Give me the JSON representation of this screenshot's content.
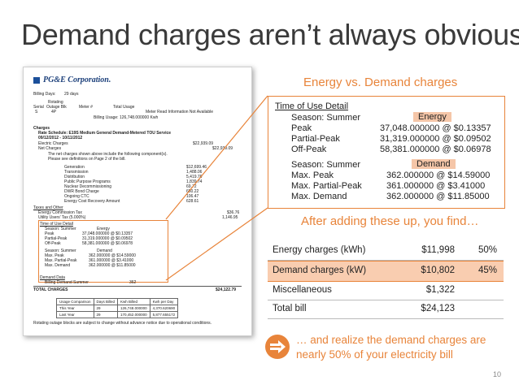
{
  "title": "Demand charges aren’t always obvious",
  "bill": {
    "company": "PG&E Corporation.",
    "billing_days_label": "Billing Days:",
    "billing_days_value": "29 days",
    "rotating_outage_block": "Rotating\nOutage Blk",
    "serial_label": "Serial",
    "meter_label": "Meter #",
    "total_usage_label": "Total Usage",
    "serial_value": "S",
    "block_value": "4P",
    "meter_read_note": "Meter Read Information Not Available",
    "billing_usage": "Billing Usage: 126,748.000000 Kwh",
    "charges_label": "Charges",
    "rate_schedule": "Rate Schedule:  E19S  Medium General Demand-Metered TOU Service",
    "period": "09/12/2012 - 10/11/2012",
    "electric_charges": "Electric Charges",
    "electric_charges_amt": "$22,939.09",
    "net_charges": "Net Charges",
    "net_charges_amt": "$22,939.09",
    "net_note_1": "The net charges shown above include the following component(s).",
    "net_note_2": "Please see definitions on Page 2 of the bill.",
    "components": [
      {
        "name": "Generation",
        "amt": "$12,699.46"
      },
      {
        "name": "Transmission",
        "amt": "1,488.06"
      },
      {
        "name": "Distribution",
        "amt": "5,419.76"
      },
      {
        "name": "Public Purpose Programs",
        "amt": "1,839.74"
      },
      {
        "name": "Nuclear Decommissioning",
        "amt": "69.72"
      },
      {
        "name": "DWR Bond Charge",
        "amt": "650.22"
      },
      {
        "name": "Ongoing CTC",
        "amt": "106.47"
      },
      {
        "name": "Energy Cost Recovery Amount",
        "amt": "628.61"
      }
    ],
    "taxes_label": "Taxes and Other",
    "energy_tax": "Energy Commission Tax",
    "energy_tax_amt": "$36.76",
    "utility_tax": "Utility Users' Tax (5.000%)",
    "utility_tax_amt": "1,146.95",
    "tou_label": "Time of Use Detail",
    "tou_season": "Season: Summer",
    "tou_energy": "Energy",
    "tou_peak": "Peak",
    "tou_peak_val": "37,048.000000 @ $0.13357",
    "tou_partial": "Partial-Peak",
    "tou_partial_val": "31,319.000000 @ $0.09502",
    "tou_offpeak": "Off-Peak",
    "tou_offpeak_val": "58,381.000000 @ $0.06978",
    "tou_season2": "Season: Summer",
    "tou_demand": "Demand",
    "tou_maxpeak": "Max. Peak",
    "tou_maxpeak_val": "362.000000 @ $14.59000",
    "tou_maxpartial": "Max. Partial-Peak",
    "tou_maxpartial_val": "361.000000 @ $3.41000",
    "tou_maxdemand": "Max. Demand",
    "tou_maxdemand_val": "362.000000 @ $11.85000",
    "demand_label": "Demand Data",
    "billing_demand": "Billing Demand Summer",
    "billing_demand_val": "362",
    "total_charges": "TOTAL CHARGES",
    "total_charges_amt": "$24,122.79",
    "usage_table_headers": [
      "Usage Comparison",
      "Days Billed",
      "Kwh Billed",
      "Kwh per Day"
    ],
    "usage_rows": [
      [
        "This Year",
        "29",
        "126,748.000000",
        "4,370.620690"
      ],
      [
        "Last Year",
        "29",
        "170,452.000000",
        "5,877.655172"
      ]
    ],
    "footer_note": "Rotating outage blocks are subject to change without advance notice due to operational conditions."
  },
  "energy_vs_demand": "Energy vs. Demand charges",
  "detail": {
    "header": "Time of Use Detail",
    "season1": "Season: Summer",
    "energy_tag": "Energy",
    "peak": "Peak",
    "peak_val": "37,048.000000 @ $0.13357",
    "partial": "Partial-Peak",
    "partial_val": "31,319.000000 @ $0.09502",
    "offpeak": "Off-Peak",
    "offpeak_val": "58,381.000000 @ $0.06978",
    "season2": "Season: Summer",
    "demand_tag": "Demand",
    "maxpeak": "Max. Peak",
    "maxpeak_val": "362.000000 @ $14.59000",
    "maxpartial": "Max. Partial-Peak",
    "maxpartial_val": "361.000000 @ $3.41000",
    "maxdemand": "Max. Demand",
    "maxdemand_val": "362.000000 @ $11.85000"
  },
  "after_adding": "After adding these up, you find…",
  "summary": [
    {
      "label": "Energy charges (kWh)",
      "amount": "$11,998",
      "pct": "50%"
    },
    {
      "label": "Demand charges (kW)",
      "amount": "$10,802",
      "pct": "45%"
    },
    {
      "label": "Miscellaneous",
      "amount": "$1,322",
      "pct": ""
    },
    {
      "label": "Total bill",
      "amount": "$24,123",
      "pct": ""
    }
  ],
  "realize_line1": "… and realize the demand charges are",
  "realize_line2": "nearly 50% of your electricity bill",
  "page_number": "10",
  "colors": {
    "accent": "#e8843a",
    "highlight": "#f9cdb0",
    "title": "#3a3a3a"
  }
}
